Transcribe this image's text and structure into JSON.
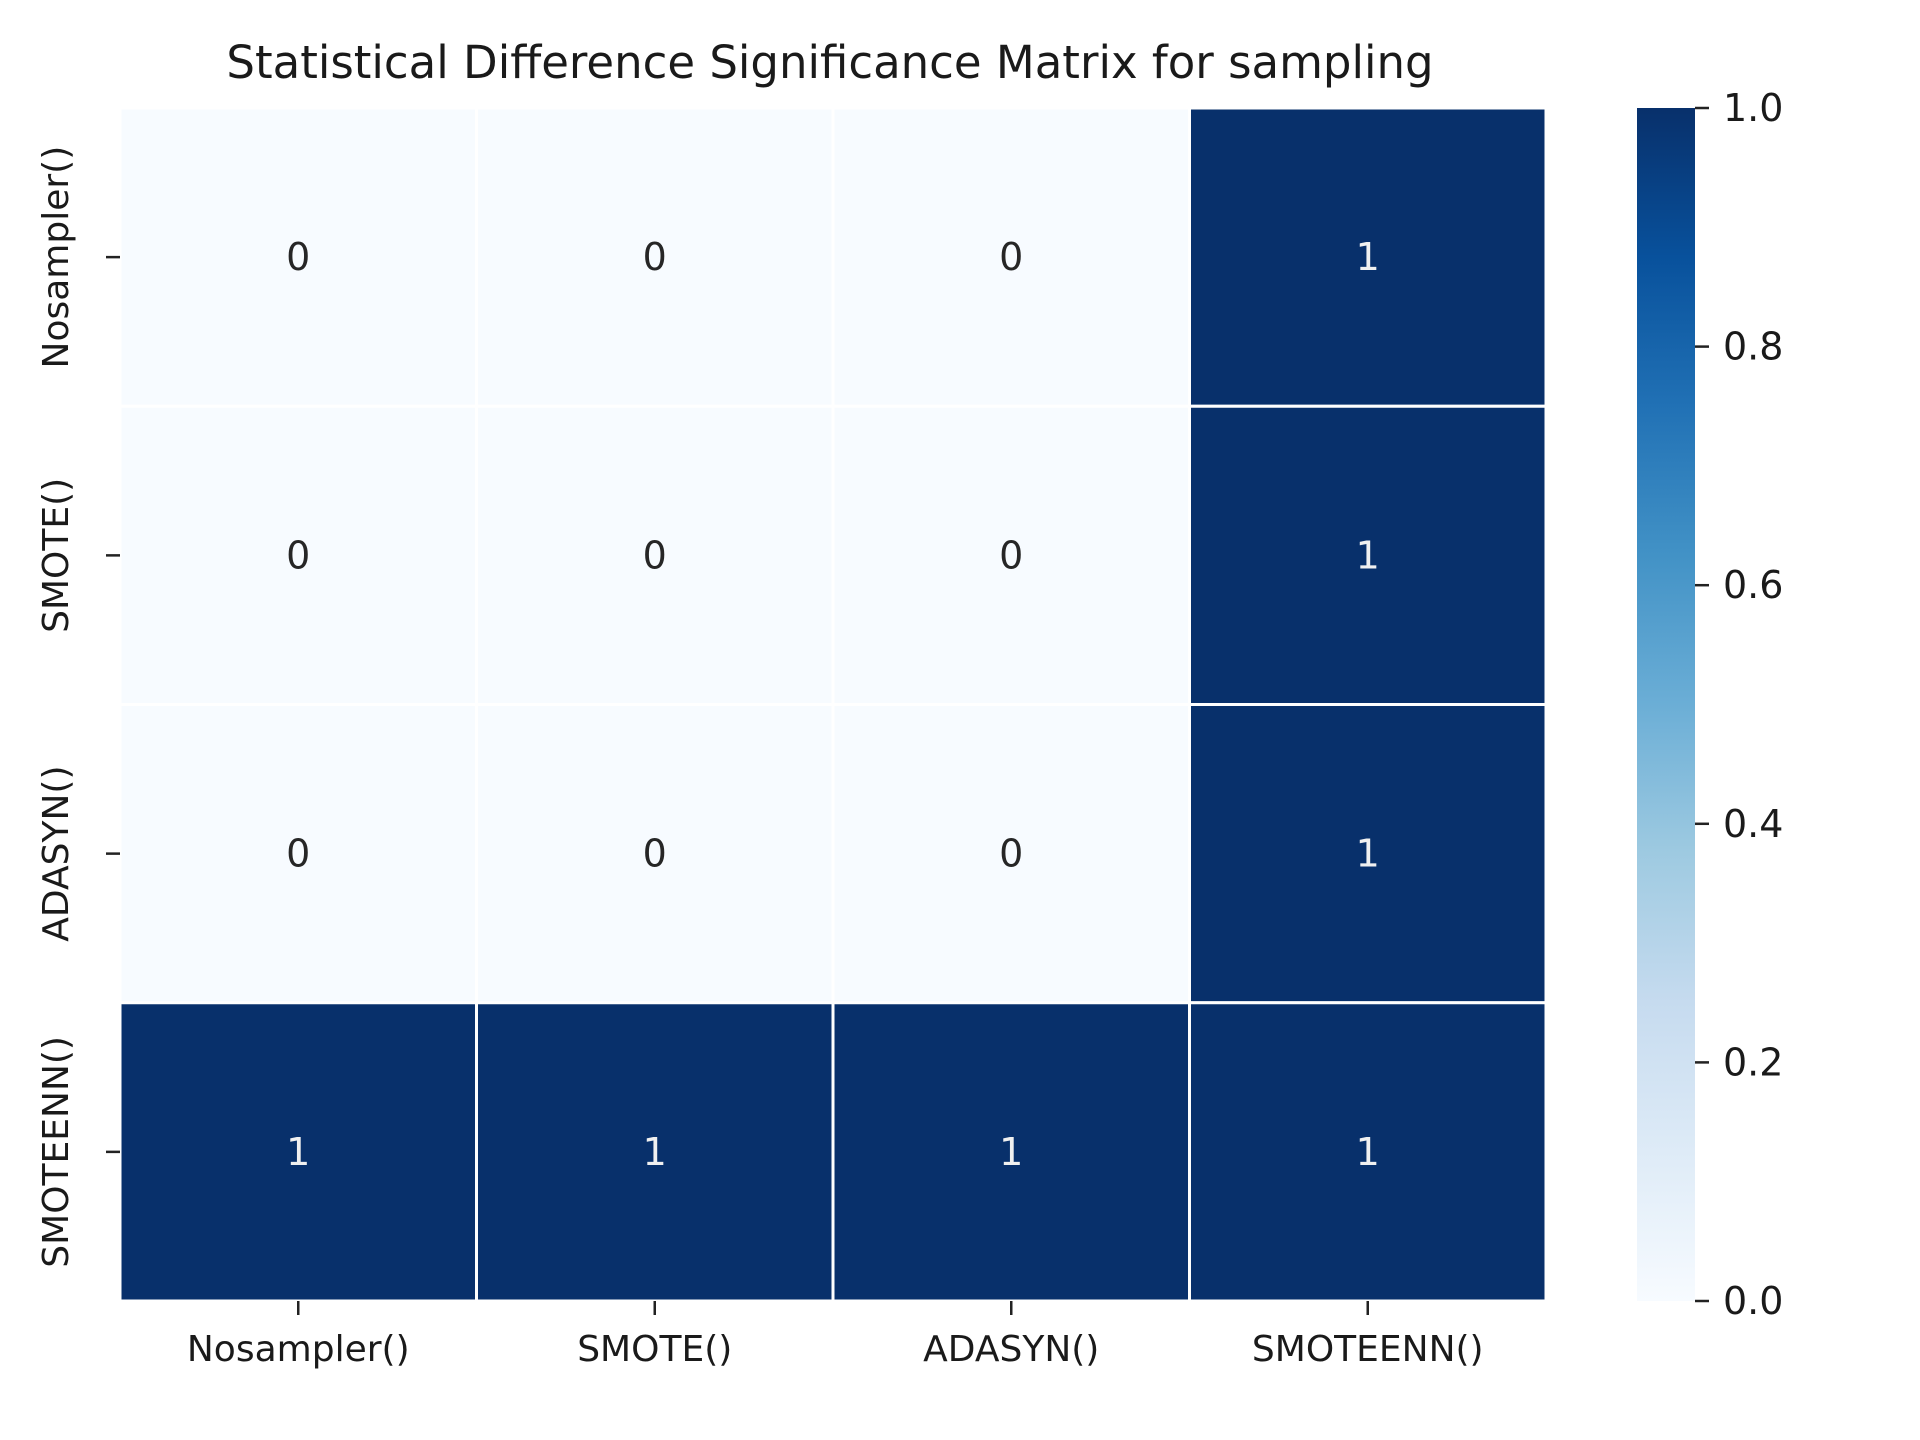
{
  "chart_data": {
    "type": "heatmap",
    "title": "Statistical Difference Significance Matrix for sampling",
    "xlabel": "",
    "ylabel": "",
    "x_categories": [
      "Nosampler()",
      "SMOTE()",
      "ADASYN()",
      "SMOTEENN()"
    ],
    "y_categories": [
      "Nosampler()",
      "SMOTE()",
      "ADASYN()",
      "SMOTEENN()"
    ],
    "values": [
      [
        0,
        0,
        0,
        1
      ],
      [
        0,
        0,
        0,
        1
      ],
      [
        0,
        0,
        0,
        1
      ],
      [
        1,
        1,
        1,
        1
      ]
    ],
    "annotations": true,
    "colormap": "Blues",
    "colorbar": {
      "range": [
        0.0,
        1.0
      ],
      "ticks": [
        0.0,
        0.2,
        0.4,
        0.6,
        0.8,
        1.0
      ],
      "tick_labels": [
        "0.0",
        "0.2",
        "0.4",
        "0.6",
        "0.8",
        "1.0"
      ]
    },
    "colors": {
      "low": "#f7fbff",
      "high": "#08306b",
      "text_light": "#f0f0f0",
      "text_dark": "#262626",
      "cell_border": "#ffffff"
    }
  }
}
